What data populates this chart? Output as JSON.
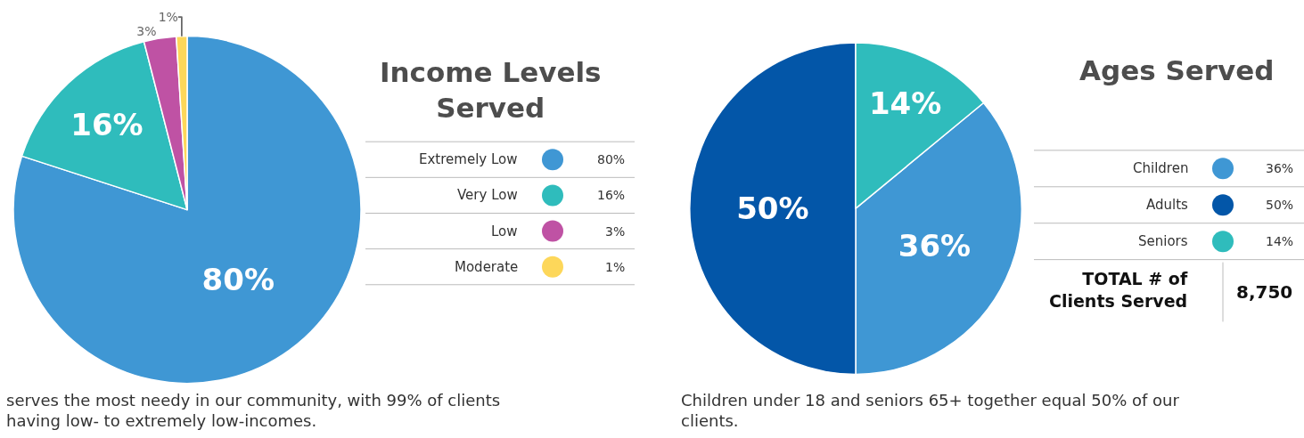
{
  "chart_data": [
    {
      "type": "pie",
      "title": "Income Levels\nServed",
      "categories": [
        "Extremely Low",
        "Very Low",
        "Low",
        "Moderate"
      ],
      "values": [
        80,
        16,
        3,
        1
      ],
      "colors": [
        "#3f97d4",
        "#2fbcbc",
        "#bf52a4",
        "#fdd75a"
      ],
      "value_labels": [
        "80%",
        "16%",
        "3%",
        "1%"
      ],
      "legend": "right",
      "annotations": [
        "serves the most needy in our community, with 99% of clients\nhaving low- to extremely low-incomes."
      ]
    },
    {
      "type": "pie",
      "title": "Ages Served",
      "categories": [
        "Children",
        "Adults",
        "Seniors"
      ],
      "values": [
        36,
        50,
        14
      ],
      "colors": [
        "#3f97d4",
        "#0356a8",
        "#2fbcbc"
      ],
      "value_labels": [
        "36%",
        "50%",
        "14%"
      ],
      "legend": "right",
      "annotations": [
        "Children under 18 and seniors 65+ together equal 50% of our\nclients.",
        "TOTAL # of\nClients Served",
        "8,750"
      ]
    }
  ]
}
